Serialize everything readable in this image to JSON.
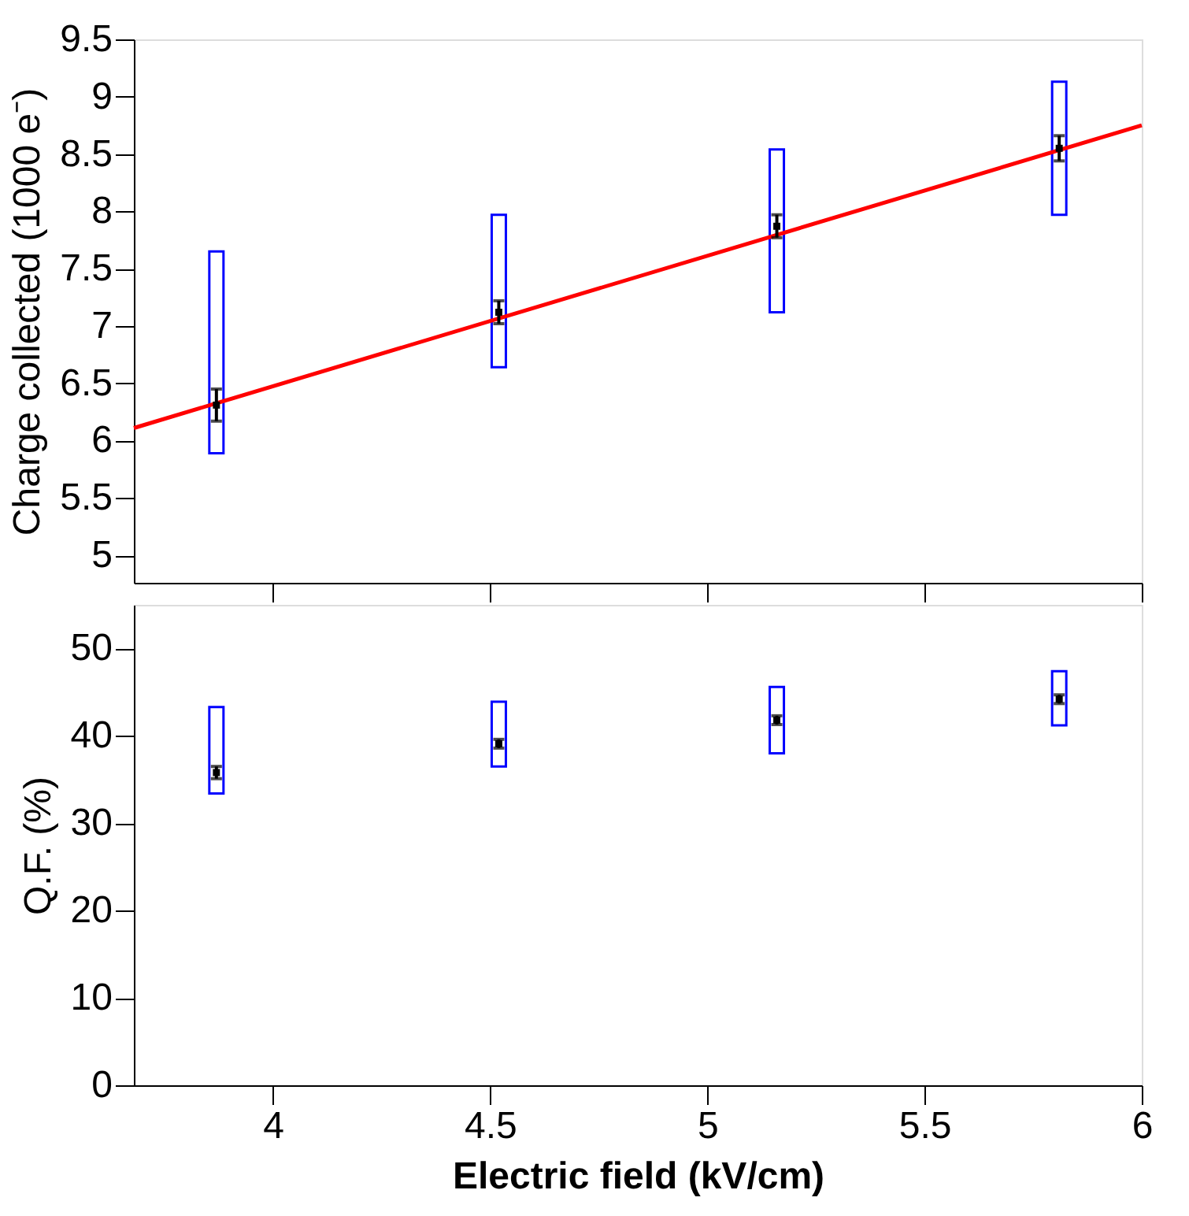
{
  "chart_data": [
    {
      "type": "scatter",
      "ylabel": "Charge collected (1000 e⁻)",
      "xlim": [
        3.68,
        6
      ],
      "ylim": [
        4.76,
        9.5
      ],
      "xticks": [
        {
          "value": 4,
          "label": null
        },
        {
          "value": 4.5,
          "label": null
        },
        {
          "value": 5,
          "label": null
        },
        {
          "value": 5.5,
          "label": null
        },
        {
          "value": 6,
          "label": null
        }
      ],
      "yticks": [
        5,
        5.5,
        6,
        6.5,
        7,
        7.5,
        8,
        8.5,
        9,
        9.5
      ],
      "tick_labels": "y",
      "grid": false,
      "series": [
        {
          "type": "bar",
          "color": "#0000ff",
          "x": [
            3.87,
            4.52,
            5.16,
            5.81
          ],
          "base": [
            5.89,
            6.64,
            7.12,
            7.97
          ],
          "values": [
            1.76,
            1.33,
            1.42,
            1.16
          ]
        },
        {
          "type": "line",
          "color": "#ff0000",
          "x": [
            3.68,
            6
          ],
          "values": [
            6.11,
            8.75
          ],
          "marker": "none",
          "line_style": "solid"
        },
        {
          "color": "#000000",
          "x": [
            3.87,
            4.52,
            5.16,
            5.81
          ],
          "values": [
            6.31,
            7.12,
            7.87,
            8.55
          ],
          "errors": [
            0.14,
            0.1,
            0.1,
            0.11
          ],
          "marker": "square"
        }
      ]
    },
    {
      "type": "scatter",
      "xlabel": "Electric field (kV/cm)",
      "ylabel": "Q.F. (%)",
      "xlim": [
        3.68,
        6
      ],
      "ylim": [
        0,
        55
      ],
      "xticks": [
        4,
        4.5,
        5,
        5.5,
        6
      ],
      "yticks": [
        0,
        10,
        20,
        30,
        40,
        50
      ],
      "grid": false,
      "series": [
        {
          "type": "bar",
          "color": "#0000ff",
          "x": [
            3.87,
            4.52,
            5.16,
            5.81
          ],
          "base": [
            33.4,
            36.5,
            38.0,
            41.2
          ],
          "values": [
            9.9,
            7.4,
            7.6,
            6.2
          ]
        },
        {
          "color": "#000000",
          "x": [
            3.87,
            4.52,
            5.16,
            5.81
          ],
          "values": [
            35.8,
            39.1,
            41.8,
            44.2
          ],
          "errors": [
            0.7,
            0.5,
            0.5,
            0.5
          ],
          "marker": "square"
        }
      ]
    }
  ]
}
